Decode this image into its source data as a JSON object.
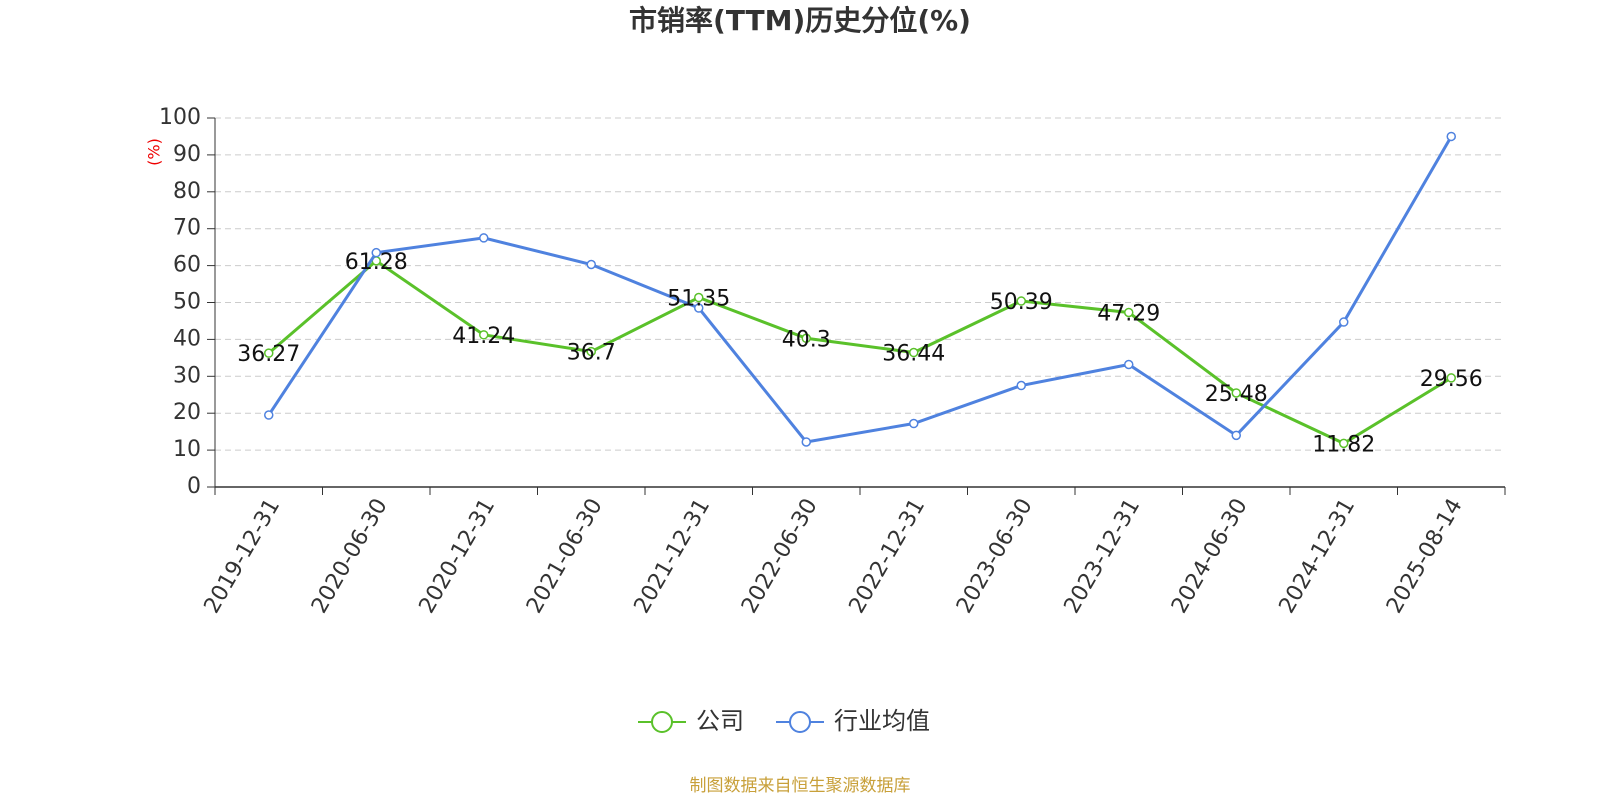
{
  "chart_data": {
    "type": "line",
    "title": "市销率(TTM)历史分位(%)",
    "ylabel": "(%)",
    "categories": [
      "2019-12-31",
      "2020-06-30",
      "2020-12-31",
      "2021-06-30",
      "2021-12-31",
      "2022-06-30",
      "2022-12-31",
      "2023-06-30",
      "2023-12-31",
      "2024-06-30",
      "2024-12-31",
      "2025-08-14"
    ],
    "series": [
      {
        "name": "公司",
        "color": "#5ac12a",
        "values": [
          36.27,
          61.28,
          41.24,
          36.7,
          51.35,
          40.3,
          36.44,
          50.39,
          47.29,
          25.48,
          11.82,
          29.56
        ],
        "data_labels": true
      },
      {
        "name": "行业均值",
        "color": "#4f82df",
        "values": [
          19.5,
          63.5,
          67.5,
          60.3,
          48.5,
          12.2,
          17.2,
          27.5,
          33.2,
          14,
          44.7,
          95
        ],
        "data_labels": false
      }
    ],
    "ylim": [
      0,
      100
    ],
    "yticks": [
      0,
      10,
      20,
      30,
      40,
      50,
      60,
      70,
      80,
      90,
      100
    ],
    "grid": true,
    "source": "制图数据来自恒生聚源数据库"
  }
}
